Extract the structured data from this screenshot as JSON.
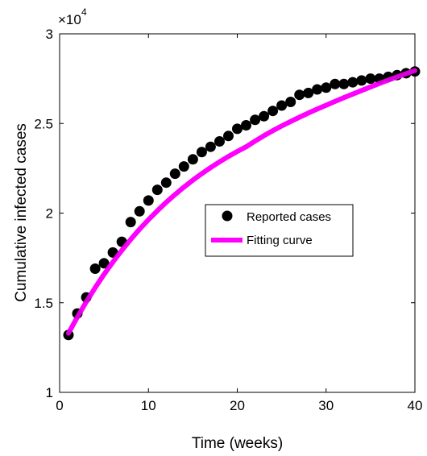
{
  "chart_data": {
    "type": "scatter",
    "xlabel": "Time (weeks)",
    "ylabel": "Cumulative infected cases",
    "y_scale_exponent": "4",
    "y_scale_base": "×10",
    "xlim": [
      0,
      40
    ],
    "ylim": [
      10000,
      30000
    ],
    "x_ticks": [
      0,
      10,
      20,
      30,
      40
    ],
    "x_tick_labels": [
      "0",
      "10",
      "20",
      "30",
      "40"
    ],
    "y_ticks": [
      10000,
      15000,
      20000,
      25000,
      30000
    ],
    "y_tick_labels": [
      "1",
      "1.5",
      "2",
      "2.5",
      "3"
    ],
    "grid": false,
    "legend_position": "center-right",
    "series": [
      {
        "name": "Reported cases",
        "kind": "scatter",
        "color": "#000000",
        "x": [
          1,
          2,
          3,
          4,
          5,
          6,
          7,
          8,
          9,
          10,
          11,
          12,
          13,
          14,
          15,
          16,
          17,
          18,
          19,
          20,
          21,
          22,
          23,
          24,
          25,
          26,
          27,
          28,
          29,
          30,
          31,
          32,
          33,
          34,
          35,
          36,
          37,
          38,
          39,
          40
        ],
        "y": [
          13200,
          14400,
          15300,
          16900,
          17200,
          17800,
          18400,
          19500,
          20100,
          20700,
          21300,
          21700,
          22200,
          22600,
          23000,
          23400,
          23700,
          24000,
          24300,
          24700,
          24900,
          25200,
          25400,
          25700,
          26000,
          26200,
          26600,
          26700,
          26900,
          27000,
          27200,
          27200,
          27300,
          27400,
          27500,
          27500,
          27600,
          27700,
          27800,
          27900
        ]
      },
      {
        "name": "Fitting curve",
        "kind": "line",
        "color": "#ff00ff",
        "x": [
          1,
          2,
          3,
          4,
          5,
          6,
          7,
          8,
          9,
          10,
          11,
          12,
          13,
          14,
          15,
          16,
          17,
          18,
          19,
          20,
          21,
          22,
          23,
          24,
          25,
          26,
          27,
          28,
          29,
          30,
          31,
          32,
          33,
          34,
          35,
          36,
          37,
          38,
          39,
          40
        ],
        "y": [
          13300,
          14200,
          15050,
          15840,
          16580,
          17270,
          17920,
          18530,
          19100,
          19630,
          20130,
          20600,
          21040,
          21450,
          21840,
          22200,
          22540,
          22860,
          23160,
          23440,
          23700,
          24020,
          24320,
          24600,
          24860,
          25110,
          25350,
          25580,
          25800,
          26020,
          26230,
          26440,
          26640,
          26840,
          27040,
          27230,
          27420,
          27600,
          27780,
          27950
        ]
      }
    ]
  }
}
